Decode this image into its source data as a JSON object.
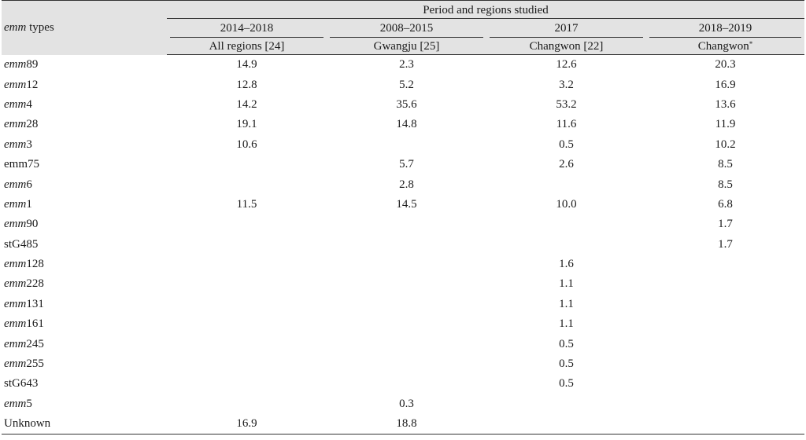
{
  "table": {
    "corner_label_italic": "emm",
    "corner_label_rest": " types",
    "group_header": "Period and regions studied",
    "periods": [
      "2014–2018",
      "2008–2015",
      "2017",
      "2018–2019"
    ],
    "regions": [
      "All regions [24]",
      "Gwangju [25]",
      "Changwon [22]",
      "Changwon"
    ],
    "region_footnote_mark": "*",
    "rows": [
      {
        "prefix": "emm",
        "suffix": "89",
        "values": [
          "14.9",
          "2.3",
          "12.6",
          "20.3"
        ]
      },
      {
        "prefix": "emm",
        "suffix": "12",
        "values": [
          "12.8",
          "5.2",
          "3.2",
          "16.9"
        ]
      },
      {
        "prefix": "emm",
        "suffix": "4",
        "values": [
          "14.2",
          "35.6",
          "53.2",
          "13.6"
        ]
      },
      {
        "prefix": "emm",
        "suffix": "28",
        "values": [
          "19.1",
          "14.8",
          "11.6",
          "11.9"
        ]
      },
      {
        "prefix": "emm",
        "suffix": "3",
        "values": [
          "10.6",
          "",
          "0.5",
          "10.2"
        ]
      },
      {
        "prefix": "",
        "suffix": "emm75",
        "values": [
          "",
          "5.7",
          "2.6",
          "8.5"
        ]
      },
      {
        "prefix": "emm",
        "suffix": "6",
        "values": [
          "",
          "2.8",
          "",
          "8.5"
        ]
      },
      {
        "prefix": "emm",
        "suffix": "1",
        "values": [
          "11.5",
          "14.5",
          "10.0",
          "6.8"
        ]
      },
      {
        "prefix": "emm",
        "suffix": "90",
        "values": [
          "",
          "",
          "",
          "1.7"
        ]
      },
      {
        "prefix": "",
        "suffix": "stG485",
        "values": [
          "",
          "",
          "",
          "1.7"
        ]
      },
      {
        "prefix": "emm",
        "suffix": "128",
        "values": [
          "",
          "",
          "1.6",
          ""
        ]
      },
      {
        "prefix": "emm",
        "suffix": "228",
        "values": [
          "",
          "",
          "1.1",
          ""
        ]
      },
      {
        "prefix": "emm",
        "suffix": "131",
        "values": [
          "",
          "",
          "1.1",
          ""
        ]
      },
      {
        "prefix": "emm",
        "suffix": "161",
        "values": [
          "",
          "",
          "1.1",
          ""
        ]
      },
      {
        "prefix": "emm",
        "suffix": "245",
        "values": [
          "",
          "",
          "0.5",
          ""
        ]
      },
      {
        "prefix": "emm",
        "suffix": "255",
        "values": [
          "",
          "",
          "0.5",
          ""
        ]
      },
      {
        "prefix": "",
        "suffix": "stG643",
        "values": [
          "",
          "",
          "0.5",
          ""
        ]
      },
      {
        "prefix": "emm",
        "suffix": "5",
        "values": [
          "",
          "0.3",
          "",
          ""
        ]
      },
      {
        "prefix": "",
        "suffix": "Unknown",
        "values": [
          "16.9",
          "18.8",
          "",
          ""
        ]
      }
    ]
  }
}
